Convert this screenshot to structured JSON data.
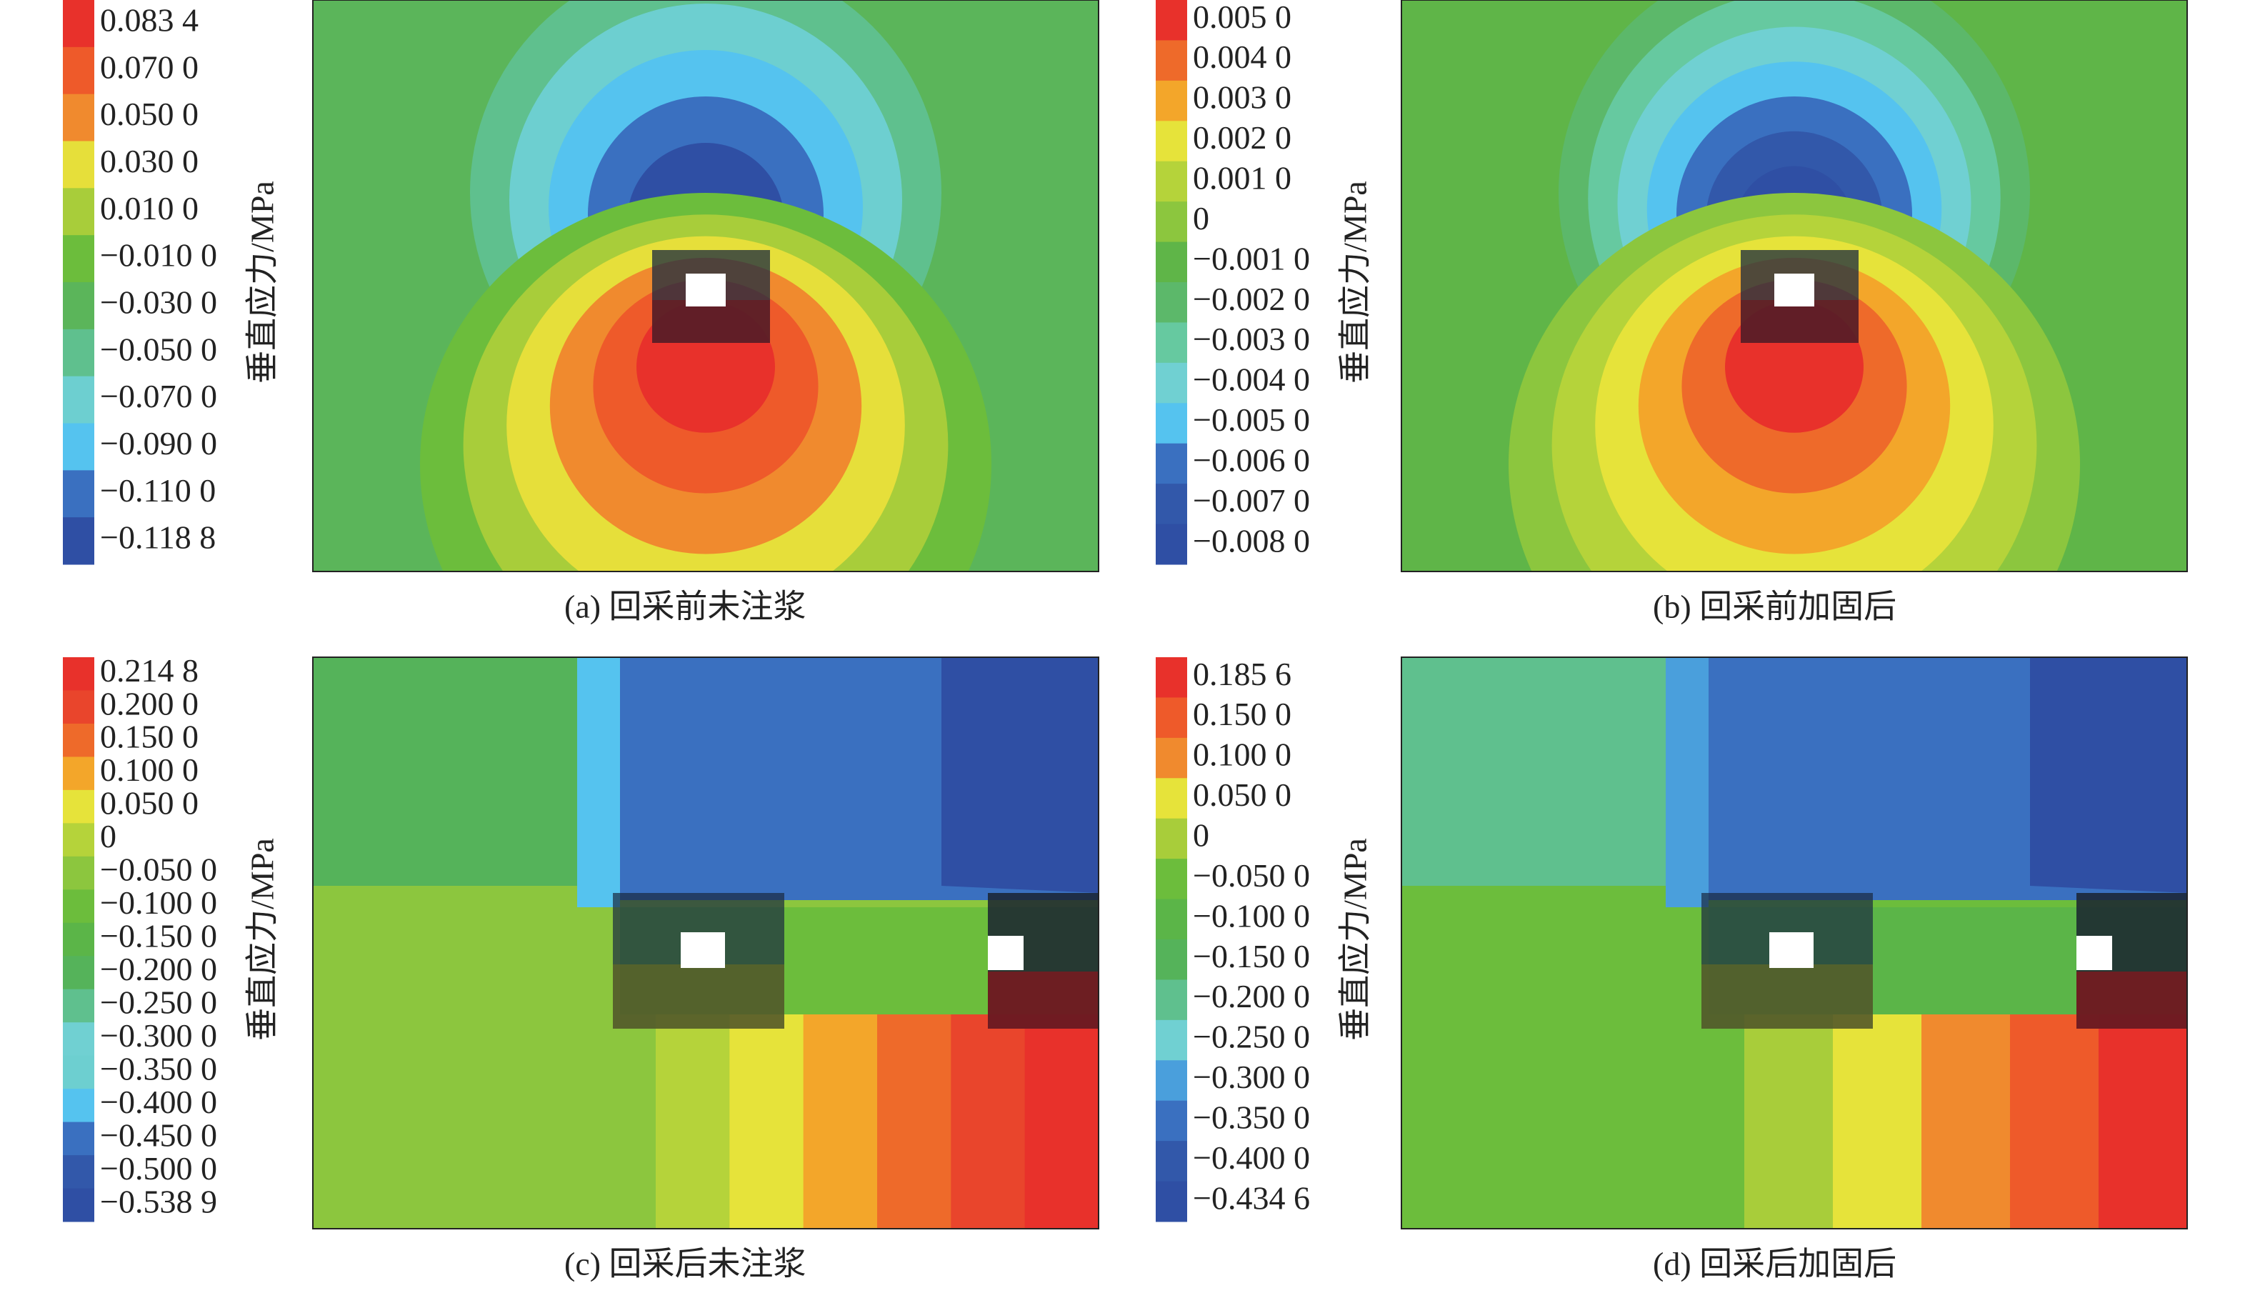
{
  "chart_data": [
    {
      "type": "contour",
      "layout": "pre-mining",
      "caption": "(a) 回采前未注浆",
      "colorbar_label": "垂直应力/MPa",
      "ticks": [
        {
          "value": 0.0834,
          "label": "0.083 4"
        },
        {
          "value": 0.07,
          "label": "0.070 0"
        },
        {
          "value": 0.05,
          "label": "0.050 0"
        },
        {
          "value": 0.03,
          "label": "0.030 0"
        },
        {
          "value": 0.01,
          "label": "0.010 0"
        },
        {
          "value": -0.01,
          "label": "−0.010 0"
        },
        {
          "value": -0.03,
          "label": "−0.030 0"
        },
        {
          "value": -0.05,
          "label": "−0.050 0"
        },
        {
          "value": -0.07,
          "label": "−0.070 0"
        },
        {
          "value": -0.09,
          "label": "−0.090 0"
        },
        {
          "value": -0.11,
          "label": "−0.110 0"
        },
        {
          "value": -0.1188,
          "label": "−0.118 8"
        }
      ],
      "colors": [
        "#e8312b",
        "#ee5a2a",
        "#f08a2e",
        "#e6df3a",
        "#a8cd3a",
        "#6cbd3c",
        "#5bb55a",
        "#5fc08e",
        "#6dcfd0",
        "#55c3ef",
        "#3a70c0",
        "#2f4fa4"
      ]
    },
    {
      "type": "contour",
      "layout": "pre-mining",
      "caption": "(b) 回采前加固后",
      "colorbar_label": "垂直应力/MPa",
      "ticks": [
        {
          "value": 0.005,
          "label": "0.005 0"
        },
        {
          "value": 0.004,
          "label": "0.004 0"
        },
        {
          "value": 0.003,
          "label": "0.003 0"
        },
        {
          "value": 0.002,
          "label": "0.002 0"
        },
        {
          "value": 0.001,
          "label": "0.001 0"
        },
        0,
        {
          "value": -0.001,
          "label": "−0.001 0"
        },
        {
          "value": -0.002,
          "label": "−0.002 0"
        },
        {
          "value": -0.003,
          "label": "−0.003 0"
        },
        {
          "value": -0.004,
          "label": "−0.004 0"
        },
        {
          "value": -0.005,
          "label": "−0.005 0"
        },
        {
          "value": -0.006,
          "label": "−0.006 0"
        },
        {
          "value": -0.007,
          "label": "−0.007 0"
        },
        {
          "value": -0.008,
          "label": "−0.008 0"
        }
      ],
      "colors": [
        "#e8312b",
        "#ee6a2a",
        "#f3a62a",
        "#e6e33a",
        "#b5d33a",
        "#8cc63e",
        "#5fb548",
        "#5cb86a",
        "#66c9a0",
        "#70d0d2",
        "#55c3ef",
        "#3a70c0",
        "#3258aa",
        "#2f4fa4"
      ]
    },
    {
      "type": "contour",
      "layout": "post-mining",
      "caption": "(c) 回采后未注浆",
      "colorbar_label": "垂直应力/MPa",
      "ticks": [
        {
          "value": 0.2148,
          "label": "0.214 8"
        },
        {
          "value": 0.2,
          "label": "0.200 0"
        },
        {
          "value": 0.15,
          "label": "0.150 0"
        },
        {
          "value": 0.1,
          "label": "0.100 0"
        },
        {
          "value": 0.05,
          "label": "0.050 0"
        },
        0,
        {
          "value": -0.05,
          "label": "−0.050 0"
        },
        {
          "value": -0.1,
          "label": "−0.100 0"
        },
        {
          "value": -0.15,
          "label": "−0.150 0"
        },
        {
          "value": -0.2,
          "label": "−0.200 0"
        },
        {
          "value": -0.25,
          "label": "−0.250 0"
        },
        {
          "value": -0.3,
          "label": "−0.300 0"
        },
        {
          "value": -0.35,
          "label": "−0.350 0"
        },
        {
          "value": -0.4,
          "label": "−0.400 0"
        },
        {
          "value": -0.45,
          "label": "−0.450 0"
        },
        {
          "value": -0.5,
          "label": "−0.500 0"
        },
        {
          "value": -0.5389,
          "label": "−0.538 9"
        }
      ],
      "colors": [
        "#e8312b",
        "#e9452c",
        "#ee6a2a",
        "#f3a62a",
        "#e6e33a",
        "#b5d33a",
        "#8cc63e",
        "#6cbd3c",
        "#5bb548",
        "#55b35a",
        "#5fc08e",
        "#70d0d2",
        "#6dcfd0",
        "#55c3ef",
        "#3a70c0",
        "#3258aa",
        "#2f4fa4"
      ]
    },
    {
      "type": "contour",
      "layout": "post-mining",
      "caption": "(d) 回采后加固后",
      "colorbar_label": "垂直应力/MPa",
      "ticks": [
        {
          "value": 0.1856,
          "label": "0.185 6"
        },
        {
          "value": 0.15,
          "label": "0.150 0"
        },
        {
          "value": 0.1,
          "label": "0.100 0"
        },
        {
          "value": 0.05,
          "label": "0.050 0"
        },
        0,
        {
          "value": -0.05,
          "label": "−0.050 0"
        },
        {
          "value": -0.1,
          "label": "−0.100 0"
        },
        {
          "value": -0.15,
          "label": "−0.150 0"
        },
        {
          "value": -0.2,
          "label": "−0.200 0"
        },
        {
          "value": -0.25,
          "label": "−0.250 0"
        },
        {
          "value": -0.3,
          "label": "−0.300 0"
        },
        {
          "value": -0.35,
          "label": "−0.350 0"
        },
        {
          "value": -0.4,
          "label": "−0.400 0"
        },
        {
          "value": -0.4346,
          "label": "−0.434 6"
        }
      ],
      "colors": [
        "#e8312b",
        "#ee5a2a",
        "#f08a2e",
        "#e6e33a",
        "#a8cd3a",
        "#6cbd3c",
        "#5bb548",
        "#55b35a",
        "#5fc08e",
        "#70d0d2",
        "#4a9fdc",
        "#3a70c0",
        "#3258aa",
        "#2f4fa4"
      ]
    }
  ]
}
